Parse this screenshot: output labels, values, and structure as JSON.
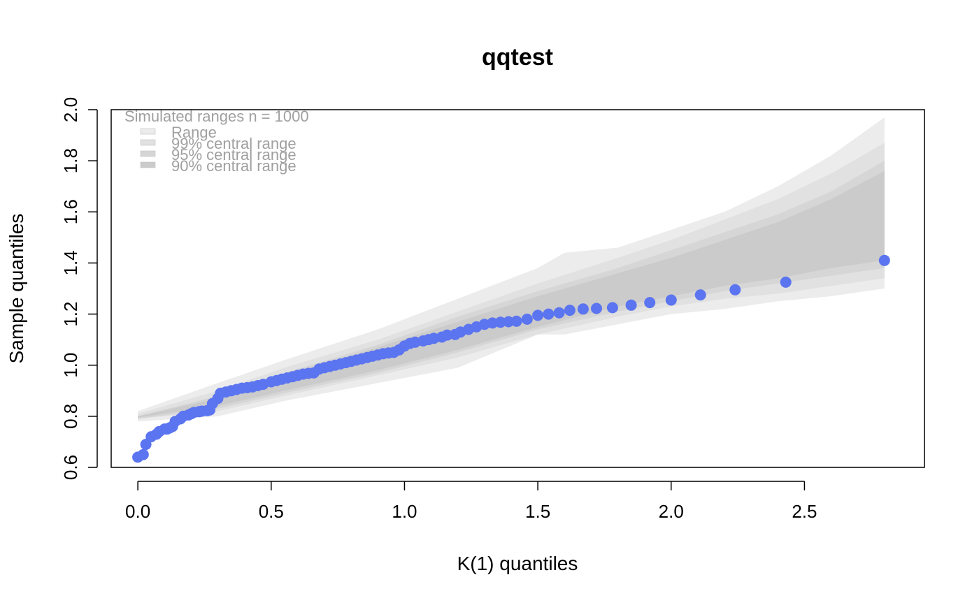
{
  "chart_data": {
    "type": "scatter",
    "title": "qqtest",
    "xlabel": "K(1) quantiles",
    "ylabel": "Sample quantiles",
    "xlim": [
      -0.1,
      2.95
    ],
    "ylim": [
      0.6,
      2.0
    ],
    "x_ticks": [
      0.0,
      0.5,
      1.0,
      1.5,
      2.0,
      2.5
    ],
    "x_tick_labels": [
      "0.0",
      "0.5",
      "1.0",
      "1.5",
      "2.0",
      "2.5"
    ],
    "y_ticks": [
      0.6,
      0.8,
      1.0,
      1.2,
      1.4,
      1.6,
      1.8,
      2.0
    ],
    "y_tick_labels": [
      "0.6",
      "0.8",
      "1.0",
      "1.2",
      "1.4",
      "1.6",
      "1.8",
      "2.0"
    ],
    "grid": false,
    "legend": {
      "title": "Simulated ranges n = 1000",
      "placement": "top-left",
      "entries": [
        "Range",
        "99% central range",
        "95% central range",
        "90% central range"
      ]
    },
    "point_color": "#5b74f0",
    "band_colors": [
      "#ececec",
      "#e1e1e1",
      "#d6d6d6",
      "#cbcbcb"
    ],
    "bands": [
      {
        "name": "Range",
        "x": [
          0.0,
          0.3,
          0.55,
          0.9,
          1.2,
          1.5,
          1.6,
          1.8,
          2.0,
          2.2,
          2.4,
          2.6,
          2.8
        ],
        "lower": [
          0.78,
          0.8,
          0.86,
          0.93,
          0.99,
          1.12,
          1.12,
          1.16,
          1.2,
          1.22,
          1.25,
          1.27,
          1.3
        ],
        "upper": [
          0.82,
          0.93,
          1.02,
          1.14,
          1.26,
          1.38,
          1.44,
          1.46,
          1.53,
          1.6,
          1.7,
          1.82,
          1.97
        ]
      },
      {
        "name": "99% central range",
        "x": [
          0.0,
          0.3,
          0.55,
          0.9,
          1.2,
          1.5,
          1.8,
          2.0,
          2.2,
          2.4,
          2.6,
          2.8
        ],
        "lower": [
          0.79,
          0.82,
          0.88,
          0.96,
          1.03,
          1.12,
          1.19,
          1.23,
          1.26,
          1.28,
          1.31,
          1.34
        ],
        "upper": [
          0.81,
          0.9,
          0.99,
          1.1,
          1.21,
          1.32,
          1.42,
          1.49,
          1.57,
          1.65,
          1.75,
          1.87
        ]
      },
      {
        "name": "95% central range",
        "x": [
          0.0,
          0.3,
          0.55,
          0.9,
          1.2,
          1.5,
          1.8,
          2.0,
          2.2,
          2.4,
          2.6,
          2.8
        ],
        "lower": [
          0.79,
          0.83,
          0.89,
          0.97,
          1.05,
          1.14,
          1.21,
          1.25,
          1.29,
          1.32,
          1.35,
          1.38
        ],
        "upper": [
          0.8,
          0.88,
          0.97,
          1.08,
          1.19,
          1.29,
          1.38,
          1.45,
          1.52,
          1.59,
          1.68,
          1.8
        ]
      },
      {
        "name": "90% central range",
        "x": [
          0.0,
          0.3,
          0.55,
          0.9,
          1.2,
          1.5,
          1.8,
          2.0,
          2.2,
          2.4,
          2.6,
          2.8
        ],
        "lower": [
          0.795,
          0.84,
          0.9,
          0.98,
          1.06,
          1.15,
          1.23,
          1.27,
          1.31,
          1.34,
          1.38,
          1.41
        ],
        "upper": [
          0.8,
          0.87,
          0.96,
          1.07,
          1.17,
          1.27,
          1.36,
          1.42,
          1.49,
          1.56,
          1.65,
          1.76
        ]
      }
    ],
    "series": [
      {
        "x": [
          0.0,
          0.02,
          0.03,
          0.05,
          0.07,
          0.08,
          0.1,
          0.11,
          0.12,
          0.13,
          0.14,
          0.16,
          0.17,
          0.19,
          0.2,
          0.21,
          0.23,
          0.24,
          0.26,
          0.27,
          0.28,
          0.3,
          0.31,
          0.33,
          0.35,
          0.37,
          0.39,
          0.41,
          0.43,
          0.45,
          0.47,
          0.5,
          0.52,
          0.54,
          0.56,
          0.58,
          0.6,
          0.62,
          0.64,
          0.66,
          0.68,
          0.7,
          0.72,
          0.74,
          0.76,
          0.78,
          0.8,
          0.82,
          0.84,
          0.86,
          0.88,
          0.9,
          0.92,
          0.94,
          0.96,
          0.98,
          1.0,
          1.02,
          1.04,
          1.07,
          1.09,
          1.11,
          1.14,
          1.16,
          1.19,
          1.21,
          1.24,
          1.27,
          1.3,
          1.33,
          1.36,
          1.39,
          1.42,
          1.46,
          1.5,
          1.54,
          1.58,
          1.62,
          1.67,
          1.72,
          1.78,
          1.85,
          1.92,
          2.0,
          2.11,
          2.24,
          2.43,
          2.8
        ],
        "y": [
          0.64,
          0.65,
          0.69,
          0.72,
          0.73,
          0.74,
          0.75,
          0.75,
          0.755,
          0.76,
          0.78,
          0.79,
          0.8,
          0.805,
          0.81,
          0.815,
          0.818,
          0.82,
          0.822,
          0.825,
          0.85,
          0.87,
          0.89,
          0.895,
          0.9,
          0.905,
          0.91,
          0.912,
          0.915,
          0.92,
          0.925,
          0.935,
          0.94,
          0.945,
          0.95,
          0.955,
          0.96,
          0.965,
          0.968,
          0.97,
          0.985,
          0.99,
          0.995,
          1.0,
          1.005,
          1.01,
          1.015,
          1.02,
          1.025,
          1.03,
          1.035,
          1.04,
          1.045,
          1.048,
          1.05,
          1.06,
          1.075,
          1.085,
          1.09,
          1.095,
          1.1,
          1.105,
          1.11,
          1.118,
          1.12,
          1.13,
          1.14,
          1.15,
          1.16,
          1.165,
          1.168,
          1.17,
          1.172,
          1.18,
          1.195,
          1.2,
          1.205,
          1.215,
          1.22,
          1.222,
          1.225,
          1.235,
          1.245,
          1.255,
          1.275,
          1.295,
          1.325,
          1.41
        ]
      }
    ]
  }
}
